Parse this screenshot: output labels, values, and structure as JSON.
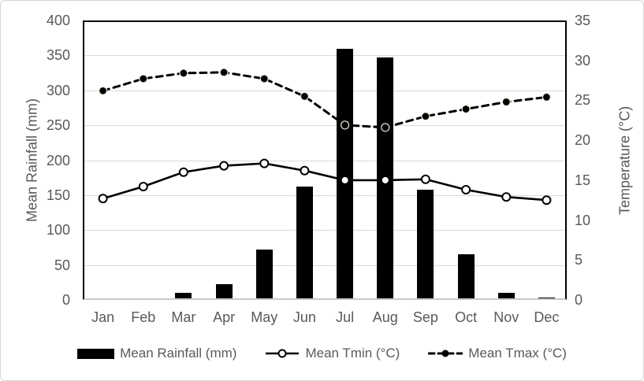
{
  "colors": {
    "series": "#000000",
    "axis_text": "#595959",
    "gridline": "#d9d9d9",
    "bottom_axis_line": "#c9c9c9",
    "plot_border": "#000000",
    "frame_border": "#d6d6d6",
    "background": "#ffffff"
  },
  "chart_data": {
    "type": "combo",
    "categories": [
      "Jan",
      "Feb",
      "Mar",
      "Apr",
      "May",
      "Jun",
      "Jul",
      "Aug",
      "Sep",
      "Oct",
      "Nov",
      "Dec"
    ],
    "series": [
      {
        "name": "Mean Rainfall (mm)",
        "type": "bar",
        "axis": "left",
        "color": "#000000",
        "values": [
          0,
          2,
          10,
          22,
          72,
          162,
          360,
          347,
          158,
          65,
          10,
          3
        ]
      },
      {
        "name": "Mean Tmin (°C)",
        "type": "line",
        "style": "solid",
        "marker": "open-circle",
        "axis": "right",
        "color": "#000000",
        "values": [
          12.7,
          14.2,
          16.0,
          16.8,
          17.1,
          16.2,
          15.0,
          15.0,
          15.1,
          13.8,
          12.9,
          12.5
        ]
      },
      {
        "name": "Mean Tmax (°C)",
        "type": "line",
        "style": "dashed",
        "marker": "filled-circle",
        "axis": "right",
        "color": "#000000",
        "values": [
          26.2,
          27.7,
          28.4,
          28.5,
          27.7,
          25.5,
          21.9,
          21.6,
          23.0,
          23.9,
          24.8,
          25.4
        ]
      }
    ],
    "left_axis": {
      "title": "Mean Rainfall (mm)",
      "min": 0,
      "max": 400,
      "step": 50,
      "ticks": [
        0,
        50,
        100,
        150,
        200,
        250,
        300,
        350,
        400
      ]
    },
    "right_axis": {
      "title": "Temperature (°C)",
      "min": 0,
      "max": 35,
      "step": 5,
      "ticks": [
        0,
        5,
        10,
        15,
        20,
        25,
        30,
        35
      ]
    },
    "grid": true,
    "legend_position": "bottom"
  }
}
